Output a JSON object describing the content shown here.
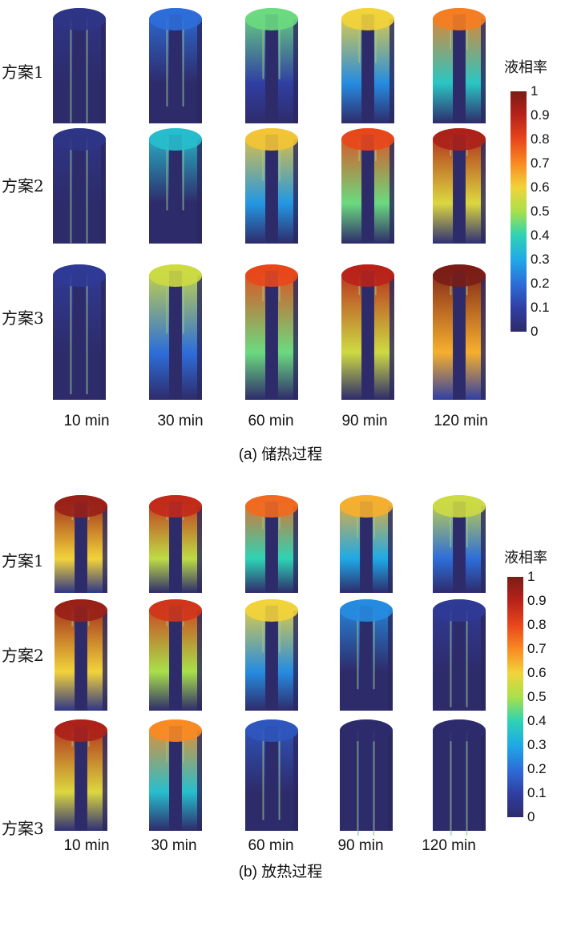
{
  "colorbar": {
    "title": "液相率",
    "ticks": [
      "1",
      "0.9",
      "0.8",
      "0.7",
      "0.6",
      "0.5",
      "0.4",
      "0.3",
      "0.2",
      "0.1",
      "0"
    ],
    "colors": [
      "#2e2b6b",
      "#303fa2",
      "#2d6ed9",
      "#1fa9e6",
      "#2ed3b4",
      "#a8e04a",
      "#f2d33a",
      "#f98a22",
      "#e8471b",
      "#b8221a",
      "#7a1d16"
    ]
  },
  "panels": [
    {
      "caption": "(a) 储热过程",
      "times": [
        "10 min",
        "30 min",
        "60 min",
        "90 min",
        "120 min"
      ],
      "schemes": [
        {
          "label": "方案1",
          "fill": [
            0.05,
            0.2,
            0.45,
            0.6,
            0.72
          ]
        },
        {
          "label": "方案2",
          "fill": [
            0.05,
            0.35,
            0.62,
            0.8,
            0.92
          ]
        },
        {
          "label": "方案3",
          "fill": [
            0.08,
            0.55,
            0.8,
            0.9,
            1.0
          ]
        }
      ]
    },
    {
      "caption": "(b) 放热过程",
      "times": [
        "10 min",
        "30 min",
        "60 min",
        "90 min",
        "120 min"
      ],
      "schemes": [
        {
          "label": "方案1",
          "fill": [
            0.95,
            0.88,
            0.75,
            0.65,
            0.55
          ]
        },
        {
          "label": "方案2",
          "fill": [
            0.95,
            0.85,
            0.6,
            0.25,
            0.08
          ]
        },
        {
          "label": "方案3",
          "fill": [
            0.92,
            0.7,
            0.15,
            0.0,
            0.0
          ]
        }
      ]
    }
  ]
}
